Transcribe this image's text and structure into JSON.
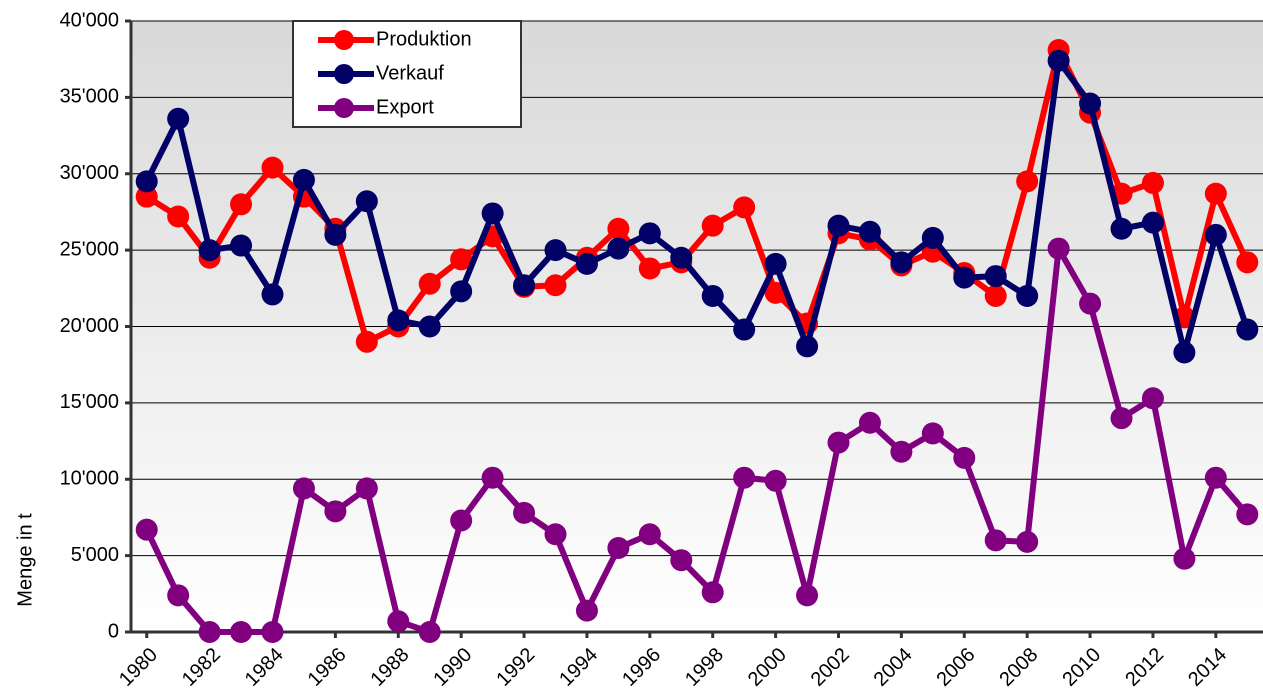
{
  "chart_data": {
    "type": "line",
    "y_label": "Menge in t",
    "x": [
      1980,
      1981,
      1982,
      1983,
      1984,
      1985,
      1986,
      1987,
      1988,
      1989,
      1990,
      1991,
      1992,
      1993,
      1994,
      1995,
      1996,
      1997,
      1998,
      1999,
      2000,
      2001,
      2002,
      2003,
      2004,
      2005,
      2006,
      2007,
      2008,
      2009,
      2010,
      2011,
      2012,
      2013,
      2014,
      2015
    ],
    "xlim": [
      1979.5,
      2015.5
    ],
    "xticks": [
      1980,
      1982,
      1984,
      1986,
      1988,
      1990,
      1992,
      1994,
      1996,
      1998,
      2000,
      2002,
      2004,
      2006,
      2008,
      2010,
      2012,
      2014
    ],
    "ylim": [
      0,
      40000
    ],
    "yticks": [
      0,
      {
        "value": 5000,
        "label": "5'000"
      },
      {
        "value": 10000,
        "label": "10'000"
      },
      {
        "value": 15000,
        "label": "15'000"
      },
      {
        "value": 20000,
        "label": "20'000"
      },
      {
        "value": 25000,
        "label": "25'000"
      },
      {
        "value": 30000,
        "label": "30'000"
      },
      {
        "value": 35000,
        "label": "35'000"
      },
      {
        "value": 40000,
        "label": "40'000"
      }
    ],
    "grid": true,
    "legend": "upper left",
    "series": [
      {
        "name": "Produktion",
        "color": "#ff0000",
        "values": [
          28500,
          27200,
          24500,
          28000,
          30400,
          28500,
          26400,
          19000,
          20000,
          22800,
          24400,
          25900,
          22600,
          22700,
          24500,
          26400,
          23800,
          24200,
          26600,
          27800,
          22200,
          20200,
          26100,
          25700,
          24000,
          24900,
          23500,
          22000,
          29500,
          38100,
          34000,
          28700,
          29400,
          20600,
          28700,
          24200
        ]
      },
      {
        "name": "Verkauf",
        "color": "#000066",
        "values": [
          29500,
          33600,
          25000,
          25300,
          22100,
          29600,
          26000,
          28200,
          20400,
          20000,
          22300,
          27400,
          22700,
          25000,
          24100,
          25100,
          26100,
          24500,
          22000,
          19800,
          24100,
          18700,
          26600,
          26200,
          24200,
          25800,
          23200,
          23300,
          22000,
          37400,
          34600,
          26400,
          26800,
          18300,
          26000,
          19800
        ]
      },
      {
        "name": "Export",
        "color": "#800080",
        "values": [
          6700,
          2400,
          0,
          0,
          0,
          9400,
          7900,
          9400,
          700,
          0,
          7300,
          10100,
          7800,
          6400,
          1400,
          5500,
          6400,
          4700,
          2600,
          10100,
          9900,
          2400,
          12400,
          13700,
          11800,
          13000,
          11400,
          6000,
          5900,
          25100,
          21500,
          14000,
          15300,
          4800,
          10100,
          7700
        ]
      }
    ]
  }
}
